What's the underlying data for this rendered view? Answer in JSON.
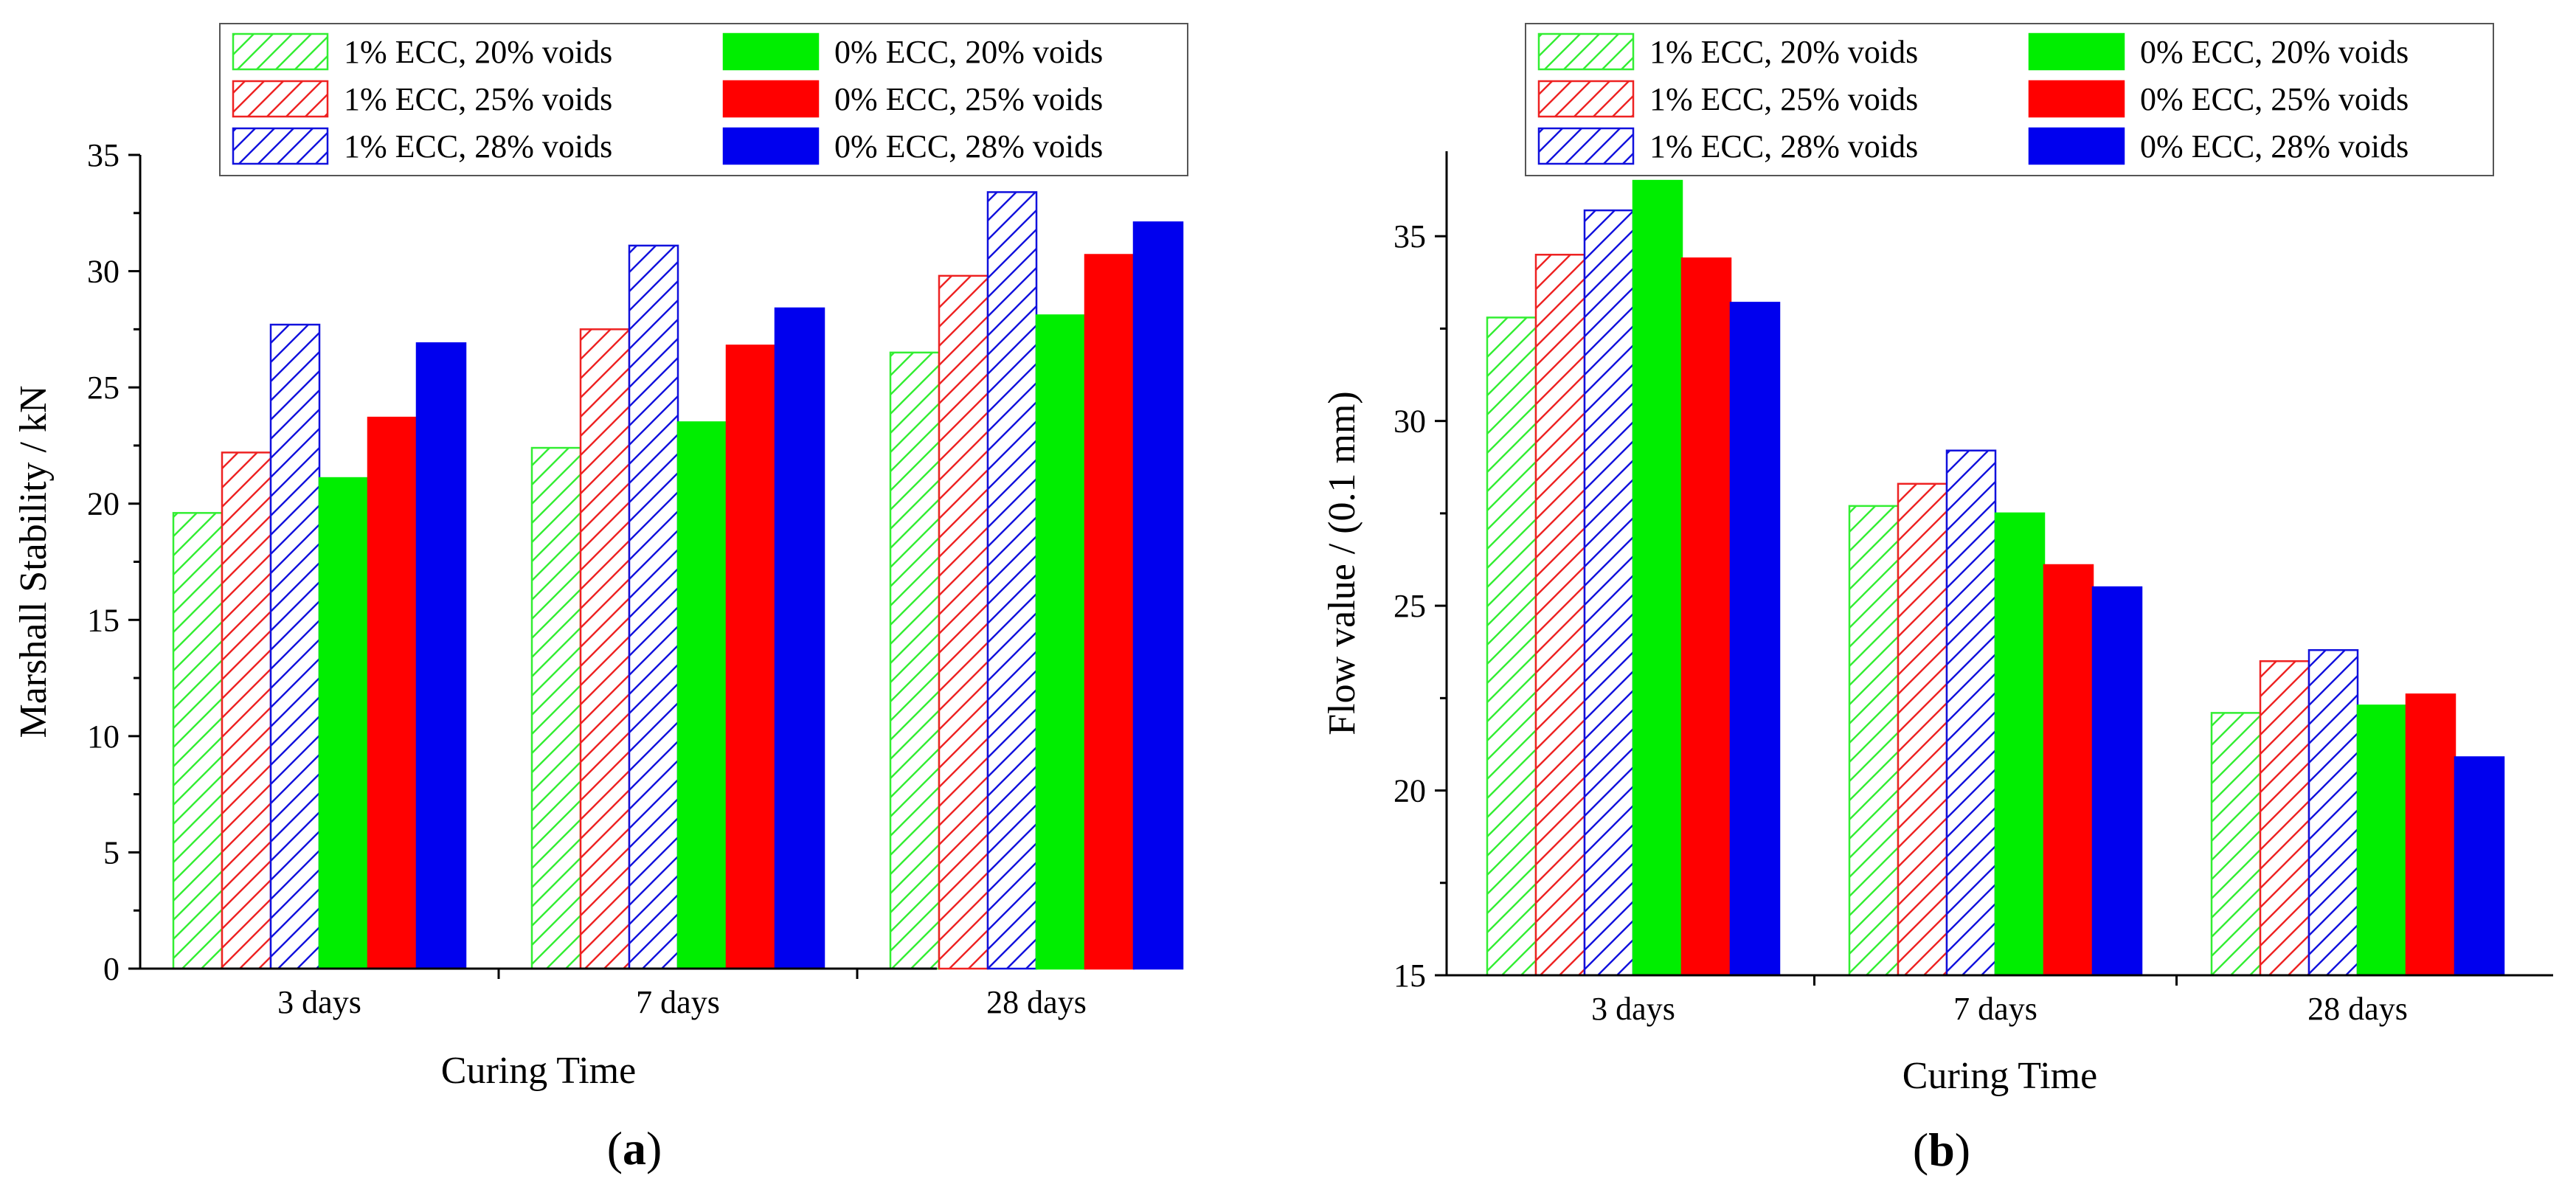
{
  "chart_data": [
    {
      "id": "a",
      "type": "bar",
      "panel_label": "a",
      "title": "",
      "xlabel": "Curing Time",
      "ylabel": "Marshall Stability / kN",
      "categories": [
        "3 days",
        "7 days",
        "28 days"
      ],
      "ylim": [
        0,
        35
      ],
      "yticks": [
        "0",
        "5",
        "10",
        "15",
        "20",
        "25",
        "30",
        "35"
      ],
      "legend_position": "top",
      "series": [
        {
          "name": "1% ECC, 20% voids",
          "color": "#33ee33",
          "pattern": "hatch",
          "values": [
            19.6,
            22.4,
            26.5
          ]
        },
        {
          "name": "1% ECC, 25% voids",
          "color": "#ee2222",
          "pattern": "hatch",
          "values": [
            22.2,
            27.5,
            29.8
          ]
        },
        {
          "name": "1% ECC, 28% voids",
          "color": "#1111dd",
          "pattern": "hatch",
          "values": [
            27.7,
            31.1,
            33.4
          ]
        },
        {
          "name": "0% ECC, 20% voids",
          "color": "#00ee00",
          "pattern": "solid",
          "values": [
            21.1,
            23.5,
            28.1
          ]
        },
        {
          "name": "0% ECC, 25% voids",
          "color": "#ff0000",
          "pattern": "solid",
          "values": [
            23.7,
            26.8,
            30.7
          ]
        },
        {
          "name": "0% ECC, 28% voids",
          "color": "#0000ee",
          "pattern": "solid",
          "values": [
            26.9,
            28.4,
            32.1
          ]
        }
      ]
    },
    {
      "id": "b",
      "type": "bar",
      "panel_label": "b",
      "title": "",
      "xlabel": "Curing Time",
      "ylabel": "Flow value / (0.1 mm)",
      "categories": [
        "3 days",
        "7 days",
        "28 days"
      ],
      "ylim": [
        15,
        37.3
      ],
      "yticks": [
        "15",
        "20",
        "25",
        "30",
        "35"
      ],
      "legend_position": "top",
      "series": [
        {
          "name": "1% ECC, 20% voids",
          "color": "#33ee33",
          "pattern": "hatch",
          "values": [
            32.8,
            27.7,
            22.1
          ]
        },
        {
          "name": "1% ECC, 25% voids",
          "color": "#ee2222",
          "pattern": "hatch",
          "values": [
            34.5,
            28.3,
            23.5
          ]
        },
        {
          "name": "1% ECC, 28% voids",
          "color": "#1111dd",
          "pattern": "hatch",
          "values": [
            35.7,
            29.2,
            23.8
          ]
        },
        {
          "name": "0% ECC, 20% voids",
          "color": "#00ee00",
          "pattern": "solid",
          "values": [
            36.5,
            27.5,
            22.3
          ]
        },
        {
          "name": "0% ECC, 25% voids",
          "color": "#ff0000",
          "pattern": "solid",
          "values": [
            34.4,
            26.1,
            22.6
          ]
        },
        {
          "name": "0% ECC, 28% voids",
          "color": "#0000ee",
          "pattern": "solid",
          "values": [
            33.2,
            25.5,
            20.9
          ]
        }
      ]
    }
  ]
}
